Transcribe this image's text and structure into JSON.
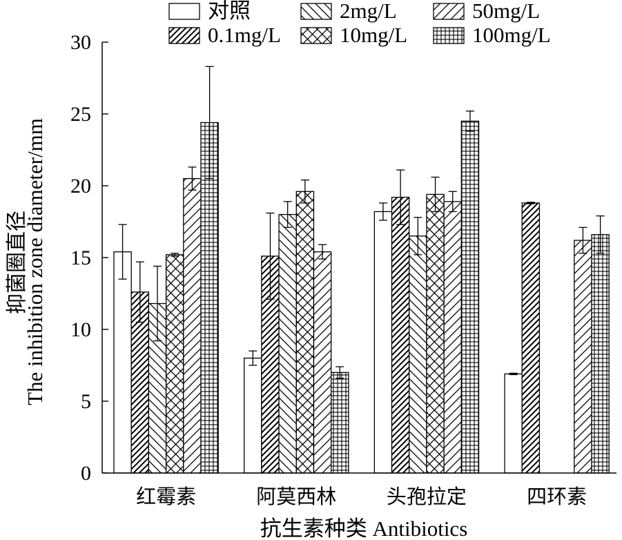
{
  "chart_data": {
    "type": "bar",
    "categories": [
      "红霉素",
      "阿莫西林",
      "头孢拉定",
      "四环素"
    ],
    "xlabel": "抗生素种类 Antibiotics",
    "ylabel": [
      "抑菌圈直径",
      "The inhibition zone diameter/mm"
    ],
    "ylim": [
      0,
      30
    ],
    "yticks": [
      0,
      5,
      10,
      15,
      20,
      25,
      30
    ],
    "grid": false,
    "legend": "top",
    "series": [
      {
        "name": "对照",
        "pattern": "none",
        "values": [
          15.4,
          8.0,
          18.2,
          6.9
        ],
        "errors": [
          1.9,
          0.5,
          0.6,
          0.05
        ]
      },
      {
        "name": "0.1mg/L",
        "pattern": "diagonal-dense",
        "values": [
          12.6,
          15.1,
          19.2,
          18.8
        ],
        "errors": [
          2.1,
          3.0,
          1.9,
          0.05
        ]
      },
      {
        "name": "2mg/L",
        "pattern": "backslash",
        "values": [
          11.8,
          18.0,
          16.5,
          null
        ],
        "errors": [
          2.6,
          0.9,
          1.3,
          null
        ]
      },
      {
        "name": "10mg/L",
        "pattern": "crosshatch",
        "values": [
          15.2,
          19.6,
          19.4,
          null
        ],
        "errors": [
          0.1,
          0.8,
          1.2,
          null
        ]
      },
      {
        "name": "50mg/L",
        "pattern": "diagonal",
        "values": [
          20.5,
          15.4,
          18.9,
          16.2
        ],
        "errors": [
          0.8,
          0.5,
          0.7,
          0.9
        ]
      },
      {
        "name": "100mg/L",
        "pattern": "grid",
        "values": [
          24.4,
          7.0,
          24.5,
          16.6
        ],
        "errors": [
          3.9,
          0.4,
          0.7,
          1.3
        ]
      }
    ]
  },
  "colors": {
    "stroke": "#000000",
    "fill": "#ffffff"
  }
}
